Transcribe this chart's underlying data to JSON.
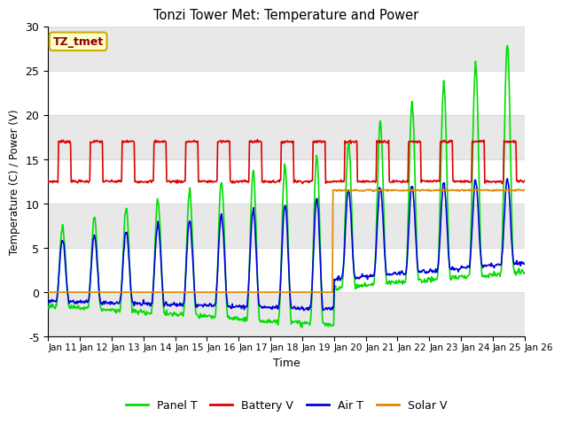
{
  "title": "Tonzi Tower Met: Temperature and Power",
  "xlabel": "Time",
  "ylabel": "Temperature (C) / Power (V)",
  "annotation": "TZ_tmet",
  "ylim": [
    -5,
    30
  ],
  "xlim_days": [
    11,
    26
  ],
  "legend_labels": [
    "Panel T",
    "Battery V",
    "Air T",
    "Solar V"
  ],
  "legend_colors": [
    "#00dd00",
    "#dd0000",
    "#0000dd",
    "#dd8800"
  ],
  "bg_color": "#ffffff",
  "plot_bg_color": "#ffffff",
  "alt_band_color": "#e8e8e8",
  "grid_color": "#dddddd",
  "line_width": 1.2,
  "tick_labels": [
    "Jan 11",
    "Jan 12",
    "Jan 13",
    "Jan 14",
    "Jan 15",
    "Jan 16",
    "Jan 17",
    "Jan 18",
    "Jan 19",
    "Jan 20",
    "Jan 21",
    "Jan 22",
    "Jan 23",
    "Jan 24",
    "Jan 25",
    "Jan 26"
  ],
  "solar_switch_day": 19.95,
  "solar_level": 11.5,
  "battery_low": 12.5,
  "battery_high": 17.0
}
